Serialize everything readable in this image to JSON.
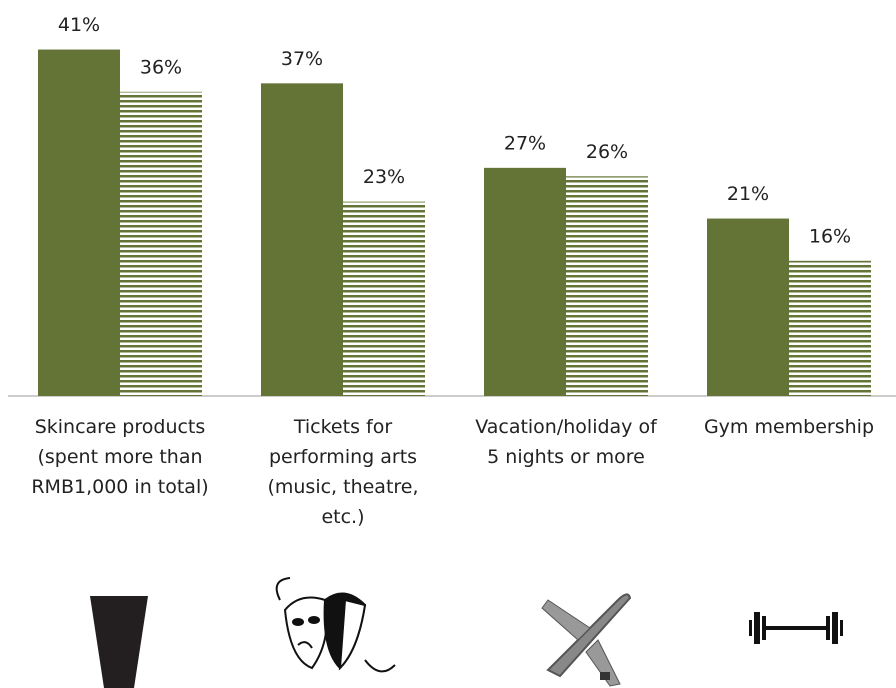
{
  "chart_data": {
    "type": "bar",
    "categories": [
      "Skincare products\n(spent more than\nRMB1,000 in total)",
      "Tickets for\nperforming arts\n(music, theatre,\netc.)",
      "Vacation/holiday of\n5 nights or more",
      "Gym membership"
    ],
    "series": [
      {
        "color": "#637436",
        "fill": "solid",
        "values": [
          41,
          37,
          27,
          21
        ],
        "value_labels": [
          "41%",
          "37%",
          "27%",
          "21%"
        ]
      },
      {
        "color": "#637436",
        "fill": "horizontal-stripes",
        "values": [
          36,
          23,
          26,
          16
        ],
        "value_labels": [
          "36%",
          "23%",
          "26%",
          "16%"
        ]
      }
    ]
  }
}
